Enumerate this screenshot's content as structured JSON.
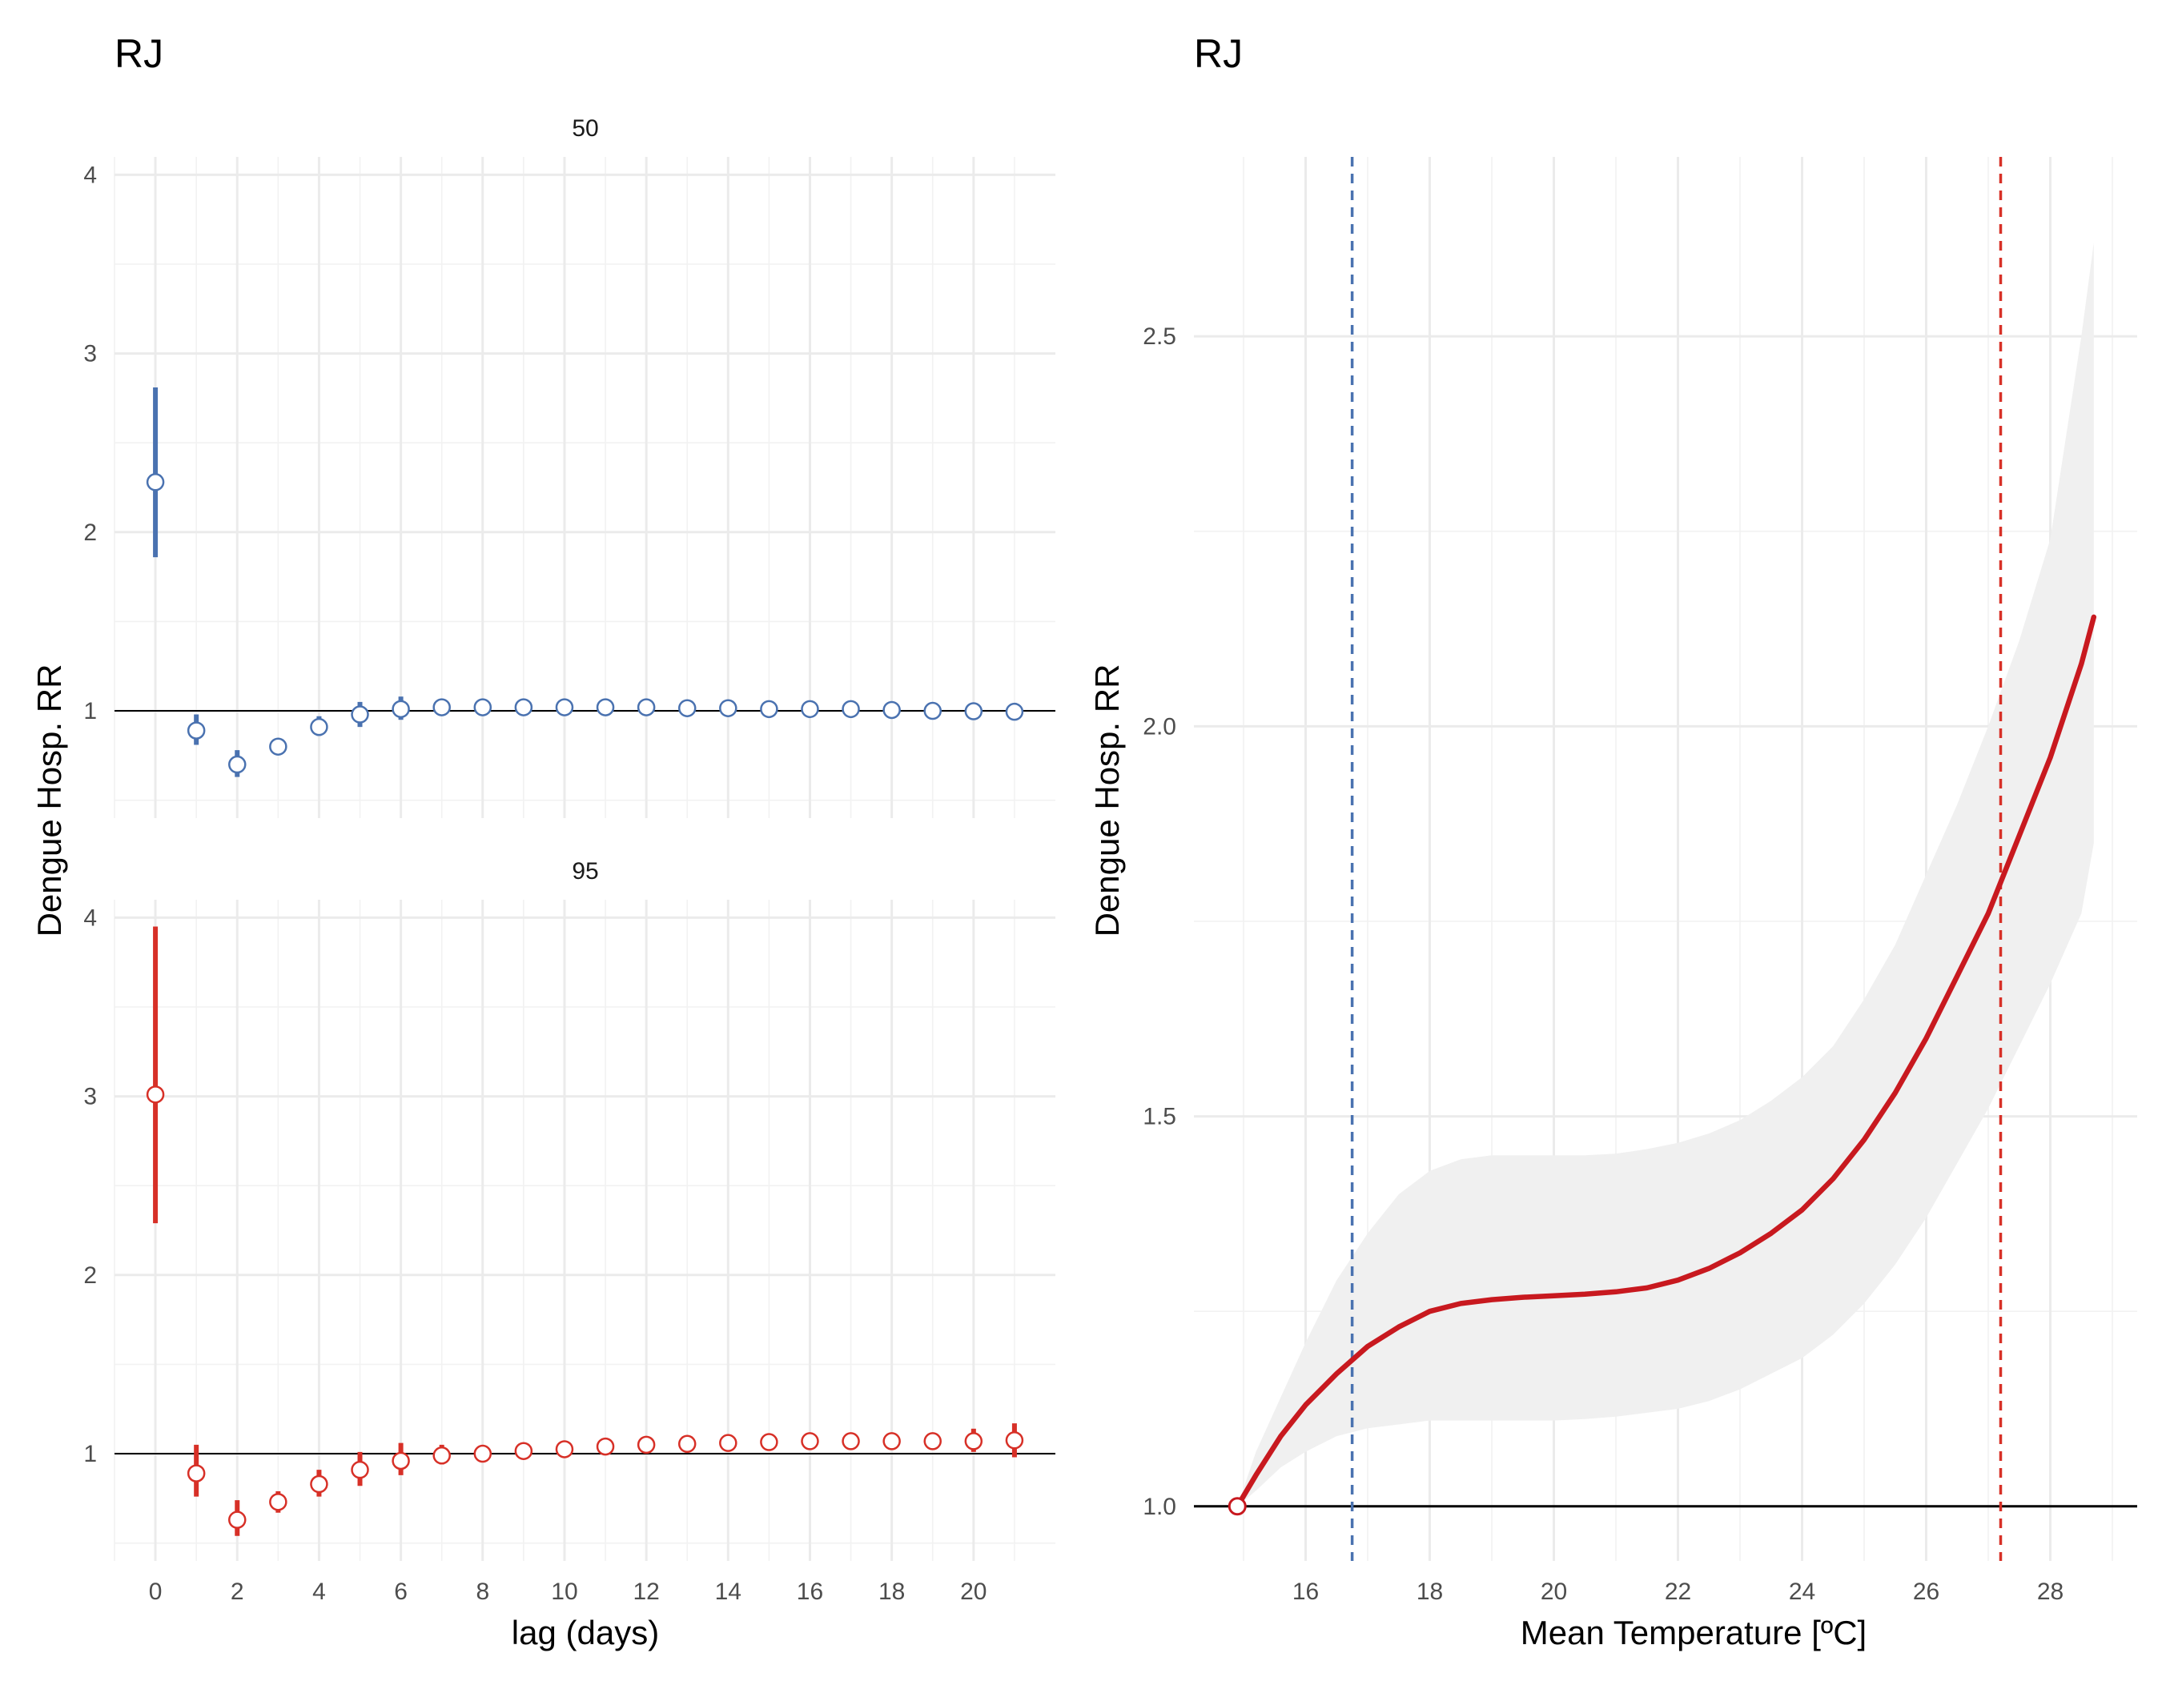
{
  "colors": {
    "blue": "#4a72b0",
    "red": "#d73027",
    "curve": "#c8191f",
    "band": "#f0f0f0",
    "refline": "#000000"
  },
  "chart_data": [
    {
      "type": "scatter",
      "title": "RJ",
      "xlabel": "lag (days)",
      "ylabel": "Dengue Hosp. RR",
      "xlim": [
        -1,
        22
      ],
      "x_ticks": [
        "0",
        "2",
        "4",
        "6",
        "8",
        "10",
        "12",
        "14",
        "16",
        "18",
        "20"
      ],
      "y_ticks": [
        "1",
        "2",
        "3",
        "4"
      ],
      "reference_line": 1,
      "grid": true,
      "facets": [
        {
          "label": "50",
          "color": "blue",
          "ylim": [
            0.4,
            4.1
          ],
          "lag": [
            0,
            1,
            2,
            3,
            4,
            5,
            6,
            7,
            8,
            9,
            10,
            11,
            12,
            13,
            14,
            15,
            16,
            17,
            18,
            19,
            20,
            21
          ],
          "rr": [
            2.28,
            0.89,
            0.7,
            0.8,
            0.91,
            0.98,
            1.01,
            1.02,
            1.02,
            1.02,
            1.02,
            1.02,
            1.02,
            1.015,
            1.015,
            1.01,
            1.01,
            1.01,
            1.005,
            1.0,
            0.998,
            0.995
          ],
          "lower": [
            1.86,
            0.81,
            0.63,
            0.78,
            0.86,
            0.91,
            0.95,
            1.0,
            1.0,
            1.0,
            1.0,
            1.0,
            1.0,
            1.0,
            1.0,
            1.0,
            1.0,
            1.0,
            0.99,
            0.98,
            0.98,
            0.97
          ],
          "upper": [
            2.81,
            0.98,
            0.78,
            0.82,
            0.97,
            1.05,
            1.08,
            1.04,
            1.04,
            1.04,
            1.04,
            1.04,
            1.04,
            1.03,
            1.03,
            1.02,
            1.02,
            1.02,
            1.02,
            1.02,
            1.02,
            1.02
          ]
        },
        {
          "label": "95",
          "color": "red",
          "ylim": [
            0.4,
            4.1
          ],
          "lag": [
            0,
            1,
            2,
            3,
            4,
            5,
            6,
            7,
            8,
            9,
            10,
            11,
            12,
            13,
            14,
            15,
            16,
            17,
            18,
            19,
            20,
            21
          ],
          "rr": [
            3.01,
            0.89,
            0.63,
            0.73,
            0.83,
            0.91,
            0.96,
            0.99,
            1.0,
            1.015,
            1.025,
            1.04,
            1.05,
            1.055,
            1.06,
            1.065,
            1.07,
            1.07,
            1.07,
            1.07,
            1.07,
            1.075
          ],
          "lower": [
            2.29,
            0.76,
            0.54,
            0.67,
            0.76,
            0.82,
            0.88,
            0.94,
            0.98,
            1.0,
            1.01,
            1.02,
            1.02,
            1.02,
            1.03,
            1.03,
            1.03,
            1.03,
            1.03,
            1.03,
            1.01,
            0.98
          ],
          "upper": [
            3.95,
            1.05,
            0.74,
            0.79,
            0.91,
            1.01,
            1.06,
            1.05,
            1.02,
            1.03,
            1.04,
            1.06,
            1.07,
            1.08,
            1.08,
            1.09,
            1.1,
            1.1,
            1.1,
            1.11,
            1.14,
            1.17
          ]
        }
      ]
    },
    {
      "type": "line",
      "title": "RJ",
      "xlabel": "Mean Temperature [ºC]",
      "ylabel": "Dengue Hosp. RR",
      "xlim": [
        14.2,
        29.4
      ],
      "ylim": [
        0.93,
        2.73
      ],
      "x_ticks": [
        "16",
        "18",
        "20",
        "22",
        "24",
        "26",
        "28"
      ],
      "y_ticks": [
        "1.0",
        "1.5",
        "2.0",
        "2.5"
      ],
      "reference_line": 1.0,
      "vlines": [
        {
          "x": 16.75,
          "color": "blue",
          "style": "dashed"
        },
        {
          "x": 27.2,
          "color": "red",
          "style": "dashed"
        }
      ],
      "series": [
        {
          "x": [
            14.9,
            15.2,
            15.6,
            16.0,
            16.5,
            17.0,
            17.5,
            18.0,
            18.5,
            19.0,
            19.5,
            20.0,
            20.5,
            21.0,
            21.5,
            22.0,
            22.5,
            23.0,
            23.5,
            24.0,
            24.5,
            25.0,
            25.5,
            26.0,
            26.5,
            27.0,
            27.5,
            28.0,
            28.5,
            28.7
          ],
          "y": [
            1.0,
            1.04,
            1.09,
            1.13,
            1.17,
            1.205,
            1.23,
            1.25,
            1.26,
            1.265,
            1.268,
            1.27,
            1.272,
            1.275,
            1.28,
            1.29,
            1.305,
            1.325,
            1.35,
            1.38,
            1.42,
            1.47,
            1.53,
            1.6,
            1.68,
            1.76,
            1.86,
            1.96,
            2.08,
            2.14
          ],
          "lower": [
            1.0,
            1.02,
            1.05,
            1.07,
            1.09,
            1.1,
            1.105,
            1.11,
            1.11,
            1.11,
            1.11,
            1.11,
            1.112,
            1.115,
            1.12,
            1.125,
            1.135,
            1.15,
            1.17,
            1.19,
            1.22,
            1.26,
            1.31,
            1.37,
            1.44,
            1.51,
            1.59,
            1.67,
            1.76,
            1.85
          ],
          "upper": [
            1.0,
            1.07,
            1.14,
            1.21,
            1.29,
            1.35,
            1.4,
            1.43,
            1.445,
            1.45,
            1.45,
            1.45,
            1.45,
            1.452,
            1.458,
            1.466,
            1.478,
            1.495,
            1.52,
            1.55,
            1.59,
            1.65,
            1.72,
            1.81,
            1.9,
            2.0,
            2.11,
            2.24,
            2.5,
            2.62
          ]
        }
      ],
      "reference_point": {
        "x": 14.9,
        "y": 1.0
      }
    }
  ]
}
